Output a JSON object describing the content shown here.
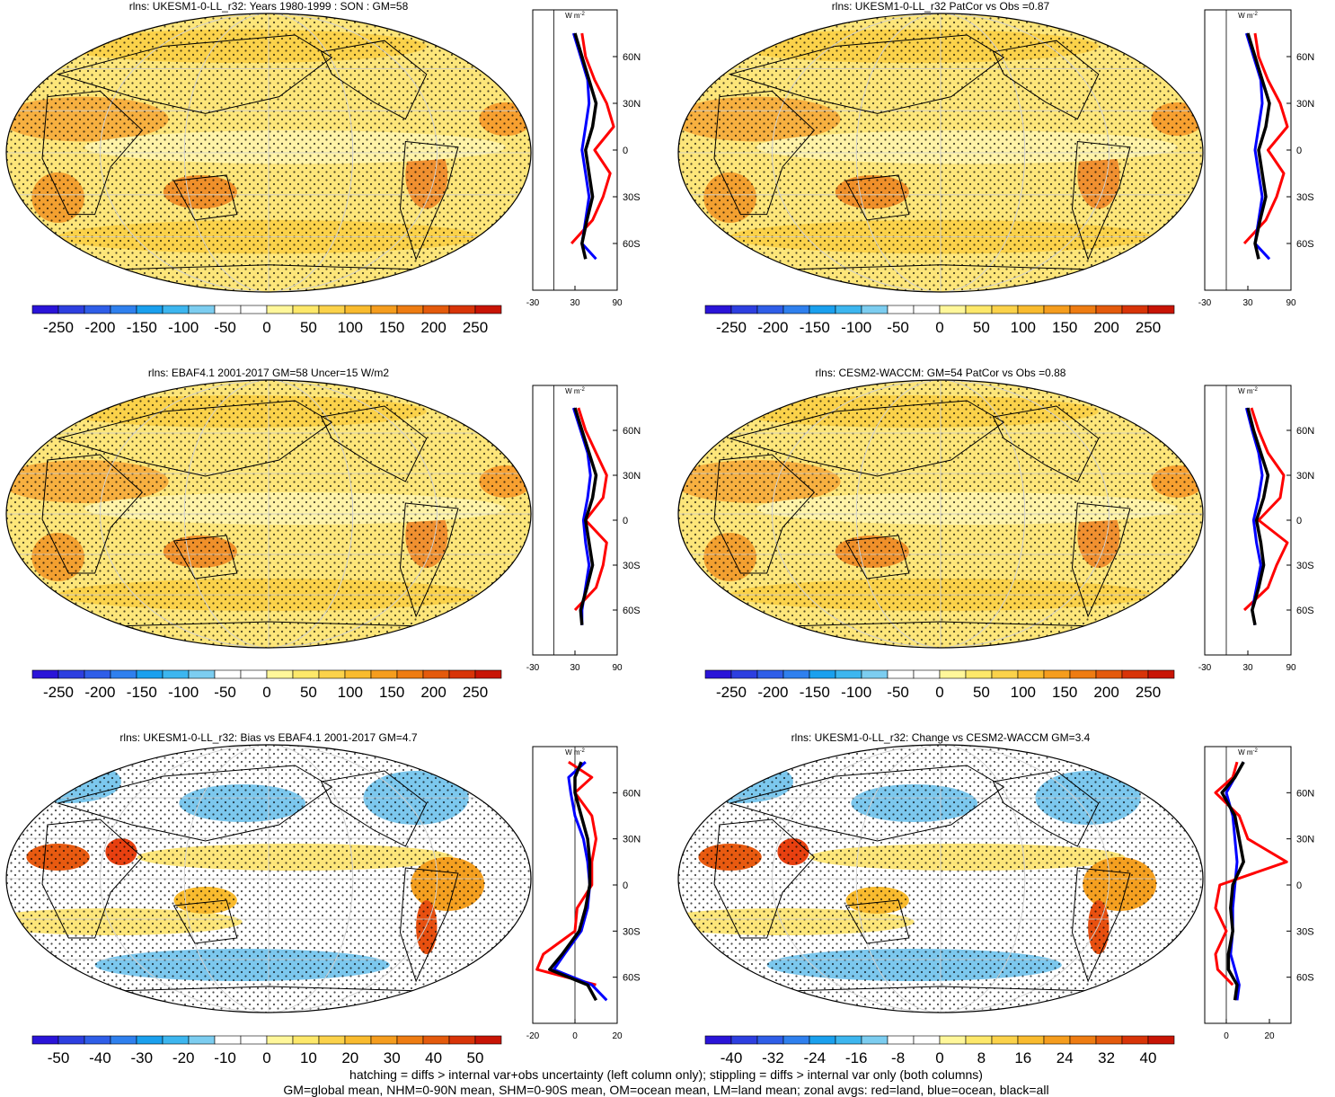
{
  "footer": {
    "line1": "hatching = diffs > internal var+obs uncertainty (left column only); stippling = diffs > internal var only (both columns)",
    "line2": "GM=global mean, NHM=0-90N mean, SHM=0-90S mean, OM=ocean mean, LM=land mean; zonal avgs: red=land, blue=ocean, black=all"
  },
  "colors": {
    "land": "#ff0000",
    "ocean": "#0000ff",
    "all": "#000000",
    "scale": [
      "#2a14d8",
      "#2d3fe0",
      "#2f5ee8",
      "#2f80ee",
      "#1aa0ee",
      "#3db6ef",
      "#7ccdf0",
      "#ffffff",
      "#ffffff",
      "#fff79a",
      "#fde86a",
      "#fbd24a",
      "#f9bb2e",
      "#f59d1e",
      "#ee7c12",
      "#e45a0c",
      "#d83408",
      "#c81405"
    ]
  },
  "zonal_unit": "W m",
  "zonal_unit_sup": "-2",
  "lat_labels": [
    "60N",
    "30N",
    "0",
    "30S",
    "60S"
  ],
  "panels": [
    {
      "title": "rlns: UKESM1-0-LL_r32: Years 1980-1999 : SON : GM=58",
      "kind": "mean",
      "colorbar": [
        "-250",
        "-200",
        "-150",
        "-100",
        "-50",
        "0",
        "50",
        "100",
        "150",
        "200",
        "250"
      ],
      "zonal_ticks": [
        "-30",
        "30",
        "90"
      ],
      "zonal_min": -30,
      "zonal_max": 90
    },
    {
      "title": "rlns: UKESM1-0-LL_r32 PatCor vs Obs =0.87",
      "kind": "mean",
      "colorbar": [
        "-250",
        "-200",
        "-150",
        "-100",
        "-50",
        "0",
        "50",
        "100",
        "150",
        "200",
        "250"
      ],
      "zonal_ticks": [
        "-30",
        "30",
        "90"
      ],
      "zonal_min": -30,
      "zonal_max": 90
    },
    {
      "title": "rlns: EBAF4.1 2001-2017 GM=58 Uncer=15 W/m2",
      "kind": "mean",
      "colorbar": [
        "-250",
        "-200",
        "-150",
        "-100",
        "-50",
        "0",
        "50",
        "100",
        "150",
        "200",
        "250"
      ],
      "zonal_ticks": [
        "-30",
        "30",
        "90"
      ],
      "zonal_min": -30,
      "zonal_max": 90
    },
    {
      "title": "rlns: CESM2-WACCM: GM=54 PatCor vs Obs =0.88",
      "kind": "mean",
      "colorbar": [
        "-250",
        "-200",
        "-150",
        "-100",
        "-50",
        "0",
        "50",
        "100",
        "150",
        "200",
        "250"
      ],
      "zonal_ticks": [
        "-30",
        "30",
        "90"
      ],
      "zonal_min": -30,
      "zonal_max": 90
    },
    {
      "title": "rlns: UKESM1-0-LL_r32: Bias vs EBAF4.1 2001-2017  GM=4.7",
      "kind": "diff",
      "colorbar": [
        "-50",
        "-40",
        "-30",
        "-20",
        "-10",
        "0",
        "10",
        "20",
        "30",
        "40",
        "50"
      ],
      "zonal_ticks": [
        "-20",
        "0",
        "20"
      ],
      "zonal_min": -20,
      "zonal_max": 20
    },
    {
      "title": "rlns: UKESM1-0-LL_r32: Change vs CESM2-WACCM GM=3.4",
      "kind": "diff",
      "colorbar": [
        "-40",
        "-32",
        "-24",
        "-16",
        "-8",
        "0",
        "8",
        "16",
        "24",
        "32",
        "40"
      ],
      "zonal_ticks": [
        "0",
        "20"
      ],
      "zonal_min": -10,
      "zonal_max": 30
    }
  ],
  "chart_data": [
    {
      "type": "map",
      "title": "rlns: UKESM1-0-LL_r32: Years 1980-1999 : SON : GM=58",
      "zonal": {
        "lat": [
          75,
          60,
          45,
          30,
          15,
          0,
          -15,
          -30,
          -45,
          -60,
          -70
        ],
        "land": [
          40,
          45,
          58,
          75,
          85,
          58,
          80,
          70,
          55,
          25,
          null
        ],
        "ocean": [
          28,
          38,
          48,
          50,
          45,
          40,
          45,
          50,
          45,
          40,
          60
        ],
        "all": [
          30,
          40,
          50,
          60,
          55,
          45,
          50,
          55,
          47,
          40,
          45
        ]
      }
    },
    {
      "type": "map",
      "title": "rlns: UKESM1-0-LL_r32 PatCor vs Obs =0.87",
      "zonal": {
        "lat": [
          75,
          60,
          45,
          30,
          15,
          0,
          -15,
          -30,
          -45,
          -60,
          -70
        ],
        "land": [
          40,
          45,
          58,
          75,
          85,
          58,
          80,
          70,
          55,
          25,
          null
        ],
        "ocean": [
          28,
          38,
          48,
          50,
          45,
          40,
          45,
          50,
          45,
          40,
          60
        ],
        "all": [
          30,
          40,
          50,
          60,
          55,
          45,
          50,
          55,
          47,
          40,
          45
        ]
      }
    },
    {
      "type": "map",
      "title": "rlns: EBAF4.1 2001-2017 GM=58 Uncer=15 W/m2",
      "zonal": {
        "lat": [
          75,
          60,
          45,
          30,
          15,
          0,
          -15,
          -30,
          -45,
          -60,
          -70
        ],
        "land": [
          35,
          45,
          60,
          75,
          70,
          45,
          75,
          70,
          60,
          30,
          null
        ],
        "ocean": [
          28,
          38,
          48,
          52,
          48,
          42,
          45,
          50,
          45,
          40,
          40
        ],
        "all": [
          30,
          40,
          50,
          60,
          55,
          45,
          50,
          55,
          47,
          38,
          40
        ]
      }
    },
    {
      "type": "map",
      "title": "rlns: CESM2-WACCM: GM=54 PatCor vs Obs =0.88",
      "zonal": {
        "lat": [
          75,
          60,
          45,
          30,
          15,
          0,
          -15,
          -30,
          -45,
          -60,
          -70
        ],
        "land": [
          35,
          45,
          58,
          80,
          75,
          45,
          85,
          70,
          58,
          25,
          null
        ],
        "ocean": [
          28,
          36,
          45,
          50,
          45,
          38,
          42,
          48,
          42,
          36,
          40
        ],
        "all": [
          30,
          38,
          48,
          58,
          52,
          42,
          48,
          52,
          45,
          36,
          40
        ]
      }
    },
    {
      "type": "map",
      "title": "rlns: UKESM1-0-LL_r32: Bias vs EBAF4.1 2001-2017  GM=4.7",
      "zonal": {
        "lat": [
          80,
          70,
          60,
          45,
          30,
          15,
          0,
          -15,
          -30,
          -45,
          -55,
          -65,
          -75
        ],
        "land": [
          -3,
          8,
          0,
          8,
          10,
          8,
          8,
          1,
          0,
          -15,
          -18,
          10,
          null
        ],
        "ocean": [
          5,
          -3,
          -2,
          0,
          4,
          6,
          7,
          6,
          3,
          -5,
          -10,
          8,
          15
        ],
        "all": [
          3,
          0,
          0,
          3,
          6,
          7,
          7,
          5,
          2,
          -6,
          -12,
          6,
          10
        ]
      }
    },
    {
      "type": "map",
      "title": "rlns: UKESM1-0-LL_r32: Change vs CESM2-WACCM GM=3.4",
      "zonal": {
        "lat": [
          80,
          70,
          60,
          45,
          30,
          15,
          0,
          -15,
          -30,
          -45,
          -55,
          -65,
          -75
        ],
        "land": [
          5,
          3,
          -5,
          6,
          10,
          28,
          -3,
          -5,
          0,
          -5,
          -4,
          3,
          null
        ],
        "ocean": [
          8,
          4,
          0,
          3,
          4,
          5,
          4,
          3,
          3,
          2,
          4,
          6,
          5
        ],
        "all": [
          8,
          4,
          -2,
          4,
          6,
          8,
          3,
          2,
          3,
          1,
          1,
          5,
          4
        ]
      }
    }
  ]
}
